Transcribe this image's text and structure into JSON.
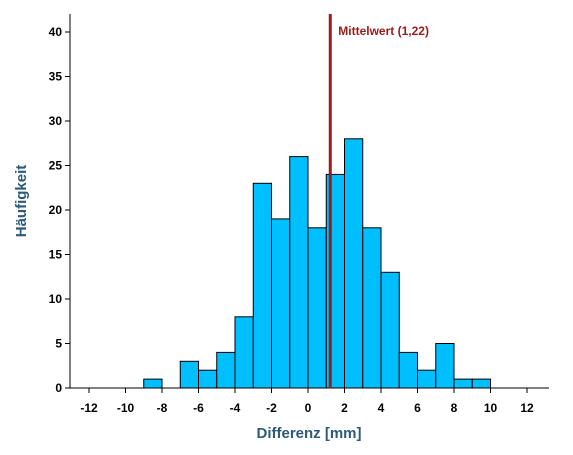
{
  "chart_data": {
    "type": "bar",
    "subtype": "histogram",
    "xlabel": "Differenz [mm]",
    "ylabel": "Häufigkeit",
    "xlim": [
      -13.5,
      13.5
    ],
    "ylim": [
      0,
      42
    ],
    "x_ticks": [
      "-12",
      "-10",
      "-8",
      "-6",
      "-4",
      "-2",
      "0",
      "2",
      "4",
      "6",
      "8",
      "10",
      "12"
    ],
    "y_ticks": [
      "0",
      "5",
      "10",
      "15",
      "20",
      "25",
      "30",
      "35",
      "40"
    ],
    "bin_width": 1,
    "bins": [
      {
        "start": -9,
        "end": -8,
        "count": 1
      },
      {
        "start": -7,
        "end": -6,
        "count": 3
      },
      {
        "start": -6,
        "end": -5,
        "count": 2
      },
      {
        "start": -5,
        "end": -4,
        "count": 4
      },
      {
        "start": -4,
        "end": -3,
        "count": 8
      },
      {
        "start": -3,
        "end": -2,
        "count": 23
      },
      {
        "start": -2,
        "end": -1,
        "count": 19
      },
      {
        "start": -1,
        "end": 0,
        "count": 26
      },
      {
        "start": 0,
        "end": 1,
        "count": 18
      },
      {
        "start": 1,
        "end": 2,
        "count": 24
      },
      {
        "start": 2,
        "end": 3,
        "count": 28
      },
      {
        "start": 3,
        "end": 4,
        "count": 18
      },
      {
        "start": 4,
        "end": 5,
        "count": 13
      },
      {
        "start": 5,
        "end": 6,
        "count": 4
      },
      {
        "start": 6,
        "end": 7,
        "count": 2
      },
      {
        "start": 7,
        "end": 8,
        "count": 5
      },
      {
        "start": 8,
        "end": 9,
        "count": 1
      },
      {
        "start": 9,
        "end": 10,
        "count": 1
      }
    ],
    "mean_line": {
      "value": 1.22,
      "label": "Mittelwert (1,22)",
      "color": "#9b1b1b"
    },
    "bar_color": "#00bfff",
    "bar_stroke": "#000000",
    "grid": false,
    "legend": "none"
  }
}
